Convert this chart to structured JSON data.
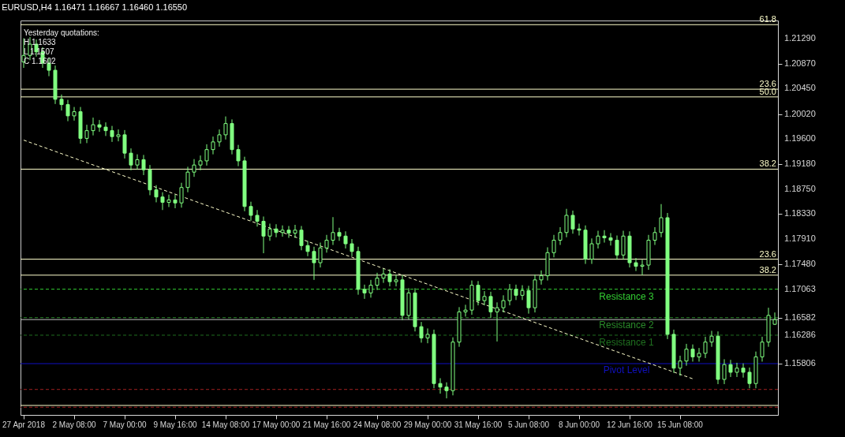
{
  "chart_data": {
    "type": "candlestick",
    "title": "EURUSD,H4  1.16471 1.16667 1.16460 1.16550",
    "annotations": [
      "Yesterday quotations:",
      "H 1.1633",
      "L 1.1507",
      "C 1.1602",
      {
        "text": "61.8",
        "y": 1.2153
      },
      {
        "text": "23.6",
        "y": 1.2044
      },
      {
        "text": "50.0",
        "y": 1.2031
      },
      {
        "text": "38.2",
        "y": 1.1909
      },
      {
        "text": "23.6",
        "y": 1.1757
      },
      {
        "text": "38.2",
        "y": 1.173
      }
    ],
    "categories": [
      "27 Apr 2018",
      null,
      null,
      null,
      null,
      null,
      null,
      null,
      "2 May 08:00",
      null,
      null,
      null,
      null,
      null,
      null,
      null,
      "7 May 00:00",
      null,
      null,
      null,
      null,
      null,
      null,
      null,
      "9 May 16:00",
      null,
      null,
      null,
      null,
      null,
      null,
      null,
      "14 May 08:00",
      null,
      null,
      null,
      null,
      null,
      null,
      null,
      "17 May 00:00",
      null,
      null,
      null,
      null,
      null,
      null,
      null,
      "21 May 16:00",
      null,
      null,
      null,
      null,
      null,
      null,
      null,
      "24 May 08:00",
      null,
      null,
      null,
      null,
      null,
      null,
      null,
      "29 May 00:00",
      null,
      null,
      null,
      null,
      null,
      null,
      null,
      "31 May 16:00",
      null,
      null,
      null,
      null,
      null,
      null,
      null,
      "5 Jun 08:00",
      null,
      null,
      null,
      null,
      null,
      null,
      null,
      "8 Jun 00:00",
      null,
      null,
      null,
      null,
      null,
      null,
      null,
      "12 Jun 16:00",
      null,
      null,
      null,
      null,
      null,
      null,
      null,
      "15 Jun 08:00",
      null,
      null,
      null,
      null,
      null,
      null,
      null,
      null,
      null,
      null,
      null,
      null,
      null,
      null,
      null
    ],
    "ylim": [
      1.1494,
      1.216
    ],
    "yticks": [
      {
        "value": 1.2129,
        "label": "1.21290"
      },
      {
        "value": 1.2087,
        "label": "1.20870"
      },
      {
        "value": 1.2045,
        "label": "1.20450"
      },
      {
        "value": 1.2002,
        "label": "1.20020"
      },
      {
        "value": 1.196,
        "label": "1.19600"
      },
      {
        "value": 1.1918,
        "label": "1.19180"
      },
      {
        "value": 1.1875,
        "label": "1.18750"
      },
      {
        "value": 1.1833,
        "label": "1.18330"
      },
      {
        "value": 1.1791,
        "label": "1.17910"
      },
      {
        "value": 1.1748,
        "label": "1.17480"
      },
      1.17063,
      1.16582,
      1.16286,
      1.15806
    ],
    "ref_lines": [
      {
        "axis": "y",
        "value": 1.2153,
        "color": "#ffffcc",
        "line_style": "solid"
      },
      {
        "axis": "y",
        "value": 1.2044,
        "color": "#ffffcc",
        "line_style": "solid"
      },
      {
        "axis": "y",
        "value": 1.2031,
        "color": "#ffffcc",
        "line_style": "solid"
      },
      {
        "axis": "y",
        "value": 1.1909,
        "color": "#ffffcc",
        "line_style": "solid"
      },
      {
        "axis": "y",
        "value": 1.1757,
        "color": "#ffffcc",
        "line_style": "solid"
      },
      {
        "axis": "y",
        "value": 1.173,
        "color": "#ffffcc",
        "line_style": "solid"
      },
      {
        "axis": "y",
        "value": 1.151,
        "color": "#ffffcc",
        "line_style": "solid"
      },
      {
        "axis": "y",
        "value": 1.1655,
        "color": "#c0c0c0",
        "line_style": "solid"
      },
      {
        "axis": "y",
        "value": 1.17063,
        "label": "Resistance 3",
        "color": "#33cc33",
        "line_style": "dashed"
      },
      {
        "axis": "y",
        "value": 1.16582,
        "label": "Resistance 2",
        "color": "#2a8a2a",
        "line_style": "dashed"
      },
      {
        "axis": "y",
        "value": 1.16286,
        "label": "Resistance 1",
        "color": "#1f6f1f",
        "line_style": "dashed"
      },
      {
        "axis": "y",
        "value": 1.15806,
        "label": "Pivot Level",
        "color": "#1010c0",
        "line_style": "solid"
      },
      {
        "axis": "y",
        "value": 1.1537,
        "color": "#a02020",
        "line_style": "dashed"
      },
      {
        "axis": "y",
        "value": 1.1507,
        "color": "#a02020",
        "line_style": "dashed"
      }
    ],
    "series": [
      {
        "type": "candlestick",
        "color": "#80ff80",
        "ohlc": [
          [
            1.209,
            1.213,
            1.208,
            1.2101
          ],
          [
            1.2101,
            1.2132,
            1.2093,
            1.212
          ],
          [
            1.212,
            1.2128,
            1.2099,
            1.2107
          ],
          [
            1.2107,
            1.2115,
            1.208,
            1.2088
          ],
          [
            1.2088,
            1.2096,
            1.2066,
            1.2076
          ],
          [
            1.2076,
            1.2084,
            1.2019,
            1.2027
          ],
          [
            1.2027,
            1.2035,
            1.2008,
            1.2018
          ],
          [
            1.2018,
            1.2026,
            1.199,
            1.1999
          ],
          [
            1.1999,
            1.2014,
            1.1991,
            1.2006
          ],
          [
            1.2006,
            1.2014,
            1.1952,
            1.1961
          ],
          [
            1.1961,
            1.1984,
            1.1953,
            1.1974
          ],
          [
            1.1974,
            1.1996,
            1.1966,
            1.1984
          ],
          [
            1.1984,
            1.1992,
            1.1972,
            1.198
          ],
          [
            1.198,
            1.1988,
            1.1965,
            1.1974
          ],
          [
            1.1974,
            1.1982,
            1.1955,
            1.1964
          ],
          [
            1.1964,
            1.1976,
            1.1956,
            1.1967
          ],
          [
            1.1967,
            1.1975,
            1.1927,
            1.1936
          ],
          [
            1.1936,
            1.1944,
            1.1907,
            1.1916
          ],
          [
            1.1916,
            1.1934,
            1.1908,
            1.1925
          ],
          [
            1.1925,
            1.1933,
            1.1899,
            1.1908
          ],
          [
            1.1908,
            1.1916,
            1.1865,
            1.1874
          ],
          [
            1.1874,
            1.1882,
            1.1853,
            1.1862
          ],
          [
            1.1862,
            1.187,
            1.184,
            1.1853
          ],
          [
            1.1853,
            1.1866,
            1.1845,
            1.1857
          ],
          [
            1.1857,
            1.1866,
            1.1843,
            1.1852
          ],
          [
            1.1852,
            1.1886,
            1.1844,
            1.1878
          ],
          [
            1.1878,
            1.1913,
            1.187,
            1.1904
          ],
          [
            1.1904,
            1.1926,
            1.1896,
            1.1916
          ],
          [
            1.1916,
            1.1932,
            1.1907,
            1.1923
          ],
          [
            1.1923,
            1.1951,
            1.1915,
            1.1942
          ],
          [
            1.1942,
            1.1964,
            1.1934,
            1.1955
          ],
          [
            1.1955,
            1.1976,
            1.1947,
            1.1967
          ],
          [
            1.1967,
            1.1998,
            1.1959,
            1.1986
          ],
          [
            1.1986,
            1.1993,
            1.1934,
            1.1942
          ],
          [
            1.1942,
            1.195,
            1.1914,
            1.1923
          ],
          [
            1.1923,
            1.193,
            1.1838,
            1.1846
          ],
          [
            1.1846,
            1.1854,
            1.1822,
            1.1831
          ],
          [
            1.1831,
            1.184,
            1.1812,
            1.1821
          ],
          [
            1.1821,
            1.1829,
            1.1767,
            1.1796
          ],
          [
            1.1796,
            1.1817,
            1.1788,
            1.1808
          ],
          [
            1.1808,
            1.1816,
            1.1794,
            1.1802
          ],
          [
            1.1802,
            1.1814,
            1.1795,
            1.1806
          ],
          [
            1.1806,
            1.1813,
            1.1793,
            1.1801
          ],
          [
            1.1801,
            1.1815,
            1.1793,
            1.1806
          ],
          [
            1.1806,
            1.1813,
            1.1772,
            1.178
          ],
          [
            1.178,
            1.1788,
            1.1762,
            1.177
          ],
          [
            1.177,
            1.1778,
            1.1722,
            1.1751
          ],
          [
            1.1751,
            1.1785,
            1.1743,
            1.1776
          ],
          [
            1.1776,
            1.1798,
            1.1768,
            1.1789
          ],
          [
            1.1789,
            1.1828,
            1.1781,
            1.1802
          ],
          [
            1.1802,
            1.181,
            1.1788,
            1.1796
          ],
          [
            1.1796,
            1.1804,
            1.1775,
            1.1783
          ],
          [
            1.1783,
            1.1791,
            1.1762,
            1.177
          ],
          [
            1.177,
            1.1778,
            1.1697,
            1.1706
          ],
          [
            1.1706,
            1.1714,
            1.169,
            1.17
          ],
          [
            1.17,
            1.1722,
            1.1692,
            1.1713
          ],
          [
            1.1713,
            1.1734,
            1.1705,
            1.1725
          ],
          [
            1.1725,
            1.1741,
            1.1717,
            1.1732
          ],
          [
            1.1732,
            1.174,
            1.1711,
            1.1719
          ],
          [
            1.1719,
            1.1731,
            1.1711,
            1.1722
          ],
          [
            1.1722,
            1.173,
            1.1654,
            1.1662
          ],
          [
            1.1662,
            1.1708,
            1.1655,
            1.17
          ],
          [
            1.17,
            1.1708,
            1.1635,
            1.1643
          ],
          [
            1.1643,
            1.1651,
            1.1616,
            1.1624
          ],
          [
            1.1624,
            1.164,
            1.1615,
            1.163
          ],
          [
            1.163,
            1.1638,
            1.1539,
            1.1547
          ],
          [
            1.1547,
            1.1556,
            1.153,
            1.1541
          ],
          [
            1.1541,
            1.1549,
            1.1522,
            1.1535
          ],
          [
            1.1535,
            1.1625,
            1.1527,
            1.1617
          ],
          [
            1.1617,
            1.1676,
            1.1609,
            1.1668
          ],
          [
            1.1668,
            1.168,
            1.166,
            1.1671
          ],
          [
            1.1671,
            1.1721,
            1.1663,
            1.1713
          ],
          [
            1.1713,
            1.172,
            1.1679,
            1.1687
          ],
          [
            1.1687,
            1.1703,
            1.1679,
            1.1694
          ],
          [
            1.1694,
            1.1702,
            1.1658,
            1.1668
          ],
          [
            1.1668,
            1.1684,
            1.1618,
            1.1675
          ],
          [
            1.1675,
            1.1696,
            1.1667,
            1.1687
          ],
          [
            1.1687,
            1.1715,
            1.1679,
            1.1706
          ],
          [
            1.1706,
            1.1714,
            1.1688,
            1.1696
          ],
          [
            1.1696,
            1.1713,
            1.1688,
            1.1704
          ],
          [
            1.1704,
            1.1712,
            1.1665,
            1.1675
          ],
          [
            1.1675,
            1.1731,
            1.1667,
            1.1722
          ],
          [
            1.1722,
            1.1738,
            1.1714,
            1.1729
          ],
          [
            1.1729,
            1.1777,
            1.1721,
            1.1768
          ],
          [
            1.1768,
            1.1798,
            1.176,
            1.1789
          ],
          [
            1.1789,
            1.1811,
            1.1781,
            1.1802
          ],
          [
            1.1802,
            1.1842,
            1.1794,
            1.1831
          ],
          [
            1.1831,
            1.1839,
            1.18,
            1.1808
          ],
          [
            1.1808,
            1.1817,
            1.1797,
            1.1806
          ],
          [
            1.1806,
            1.1814,
            1.1749,
            1.1757
          ],
          [
            1.1757,
            1.1792,
            1.1749,
            1.1783
          ],
          [
            1.1783,
            1.1805,
            1.1775,
            1.1796
          ],
          [
            1.1796,
            1.1806,
            1.1785,
            1.1793
          ],
          [
            1.1793,
            1.1801,
            1.178,
            1.1789
          ],
          [
            1.1789,
            1.1797,
            1.1756,
            1.1764
          ],
          [
            1.1764,
            1.1805,
            1.1756,
            1.1796
          ],
          [
            1.1796,
            1.1804,
            1.1743,
            1.1751
          ],
          [
            1.1751,
            1.1759,
            1.1737,
            1.1745
          ],
          [
            1.1745,
            1.1756,
            1.173,
            1.1747
          ],
          [
            1.1747,
            1.1798,
            1.1739,
            1.1789
          ],
          [
            1.1789,
            1.1811,
            1.1781,
            1.1802
          ],
          [
            1.1802,
            1.185,
            1.1794,
            1.1827
          ],
          [
            1.1827,
            1.1835,
            1.1622,
            1.163
          ],
          [
            1.163,
            1.1638,
            1.1565,
            1.1573
          ],
          [
            1.1573,
            1.1594,
            1.156,
            1.1585
          ],
          [
            1.1585,
            1.1614,
            1.1577,
            1.1605
          ],
          [
            1.1605,
            1.1613,
            1.1584,
            1.1592
          ],
          [
            1.1592,
            1.1607,
            1.1584,
            1.1598
          ],
          [
            1.1598,
            1.1626,
            1.159,
            1.1617
          ],
          [
            1.1617,
            1.1636,
            1.1609,
            1.1627
          ],
          [
            1.1627,
            1.1635,
            1.1546,
            1.1554
          ],
          [
            1.1554,
            1.1588,
            1.1546,
            1.1579
          ],
          [
            1.1579,
            1.1587,
            1.1558,
            1.1566
          ],
          [
            1.1566,
            1.1582,
            1.1558,
            1.1573
          ],
          [
            1.1573,
            1.1581,
            1.1557,
            1.1566
          ],
          [
            1.1566,
            1.1574,
            1.1539,
            1.1547
          ],
          [
            1.1547,
            1.1601,
            1.1539,
            1.1592
          ],
          [
            1.1592,
            1.1626,
            1.1584,
            1.1617
          ],
          [
            1.1617,
            1.1675,
            1.1609,
            1.1662
          ],
          [
            1.1647,
            1.1667,
            1.1646,
            1.1655
          ]
        ]
      },
      {
        "type": "line",
        "color": "#ffffcc",
        "line_style": "dashed",
        "values": [
          1.1958,
          null,
          null,
          null,
          null,
          null,
          null,
          null,
          null,
          null,
          null,
          null,
          null,
          null,
          null,
          null,
          null,
          null,
          null,
          null,
          null,
          null,
          null,
          null,
          null,
          null,
          null,
          null,
          null,
          null,
          null,
          null,
          null,
          null,
          null,
          null,
          null,
          null,
          null,
          null,
          null,
          null,
          null,
          null,
          null,
          null,
          null,
          null,
          null,
          null,
          null,
          null,
          null,
          null,
          null,
          null,
          null,
          null,
          null,
          null,
          null,
          null,
          null,
          null,
          null,
          null,
          null,
          null,
          null,
          null,
          null,
          null,
          null,
          null,
          null,
          null,
          null,
          null,
          null,
          null,
          null,
          null,
          null,
          null,
          null,
          null,
          null,
          null,
          null,
          null,
          null,
          null,
          null,
          null,
          null,
          null,
          null,
          null,
          null,
          null,
          null,
          null,
          null,
          null,
          null,
          null,
          1.1555,
          null,
          null,
          null,
          null,
          null,
          null,
          null,
          null,
          null,
          null,
          null,
          null,
          null
        ]
      }
    ]
  }
}
